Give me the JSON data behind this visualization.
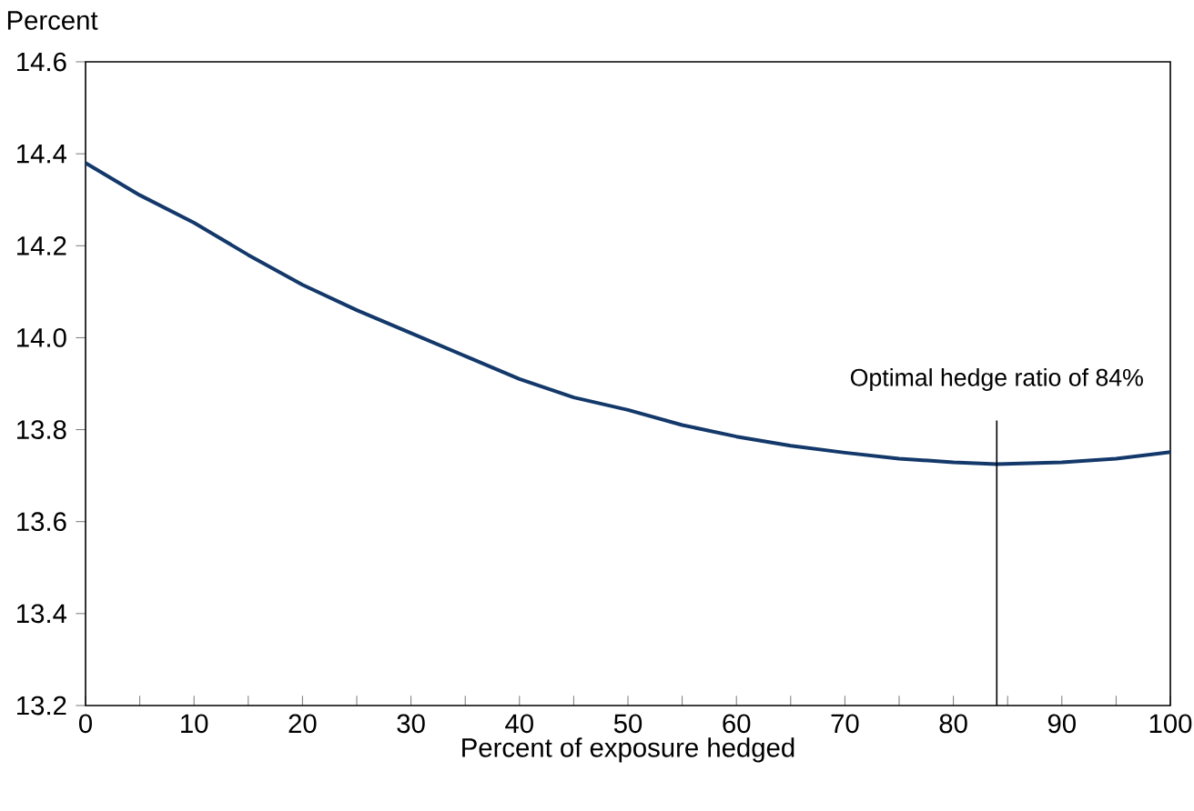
{
  "chart_data": {
    "type": "line",
    "xlabel": "Percent of exposure hedged",
    "ylabel": "Percent",
    "x": [
      0,
      5,
      10,
      15,
      20,
      25,
      30,
      35,
      40,
      45,
      50,
      55,
      60,
      65,
      70,
      75,
      80,
      84,
      90,
      95,
      100
    ],
    "series": [
      {
        "color": "#13386a",
        "values": [
          14.38,
          14.31,
          14.25,
          14.18,
          14.115,
          14.06,
          14.01,
          13.96,
          13.91,
          13.87,
          13.843,
          13.81,
          13.785,
          13.765,
          13.75,
          13.737,
          13.729,
          13.725,
          13.729,
          13.737,
          13.751
        ]
      }
    ],
    "xlim": [
      0,
      100
    ],
    "ylim": [
      13.2,
      14.6
    ],
    "xticks": [
      0,
      10,
      20,
      30,
      40,
      50,
      60,
      70,
      80,
      90,
      100
    ],
    "yticks": [
      {
        "value": 13.2,
        "label": "13.2"
      },
      {
        "value": 13.4,
        "label": "13.4"
      },
      {
        "value": 13.6,
        "label": "13.6"
      },
      {
        "value": 13.8,
        "label": "13.8"
      },
      {
        "value": 14.0,
        "label": "14.0"
      },
      {
        "value": 14.2,
        "label": "14.2"
      },
      {
        "value": 14.4,
        "label": "14.4"
      },
      {
        "value": 14.6,
        "label": "14.6"
      }
    ],
    "ref_lines": [
      {
        "axis": "x",
        "value": 84,
        "label": "Optimal hedge ratio of 84%",
        "color": "#000000",
        "line_style": "solid"
      }
    ],
    "grid": false,
    "marker": "none",
    "line_style": "solid"
  }
}
